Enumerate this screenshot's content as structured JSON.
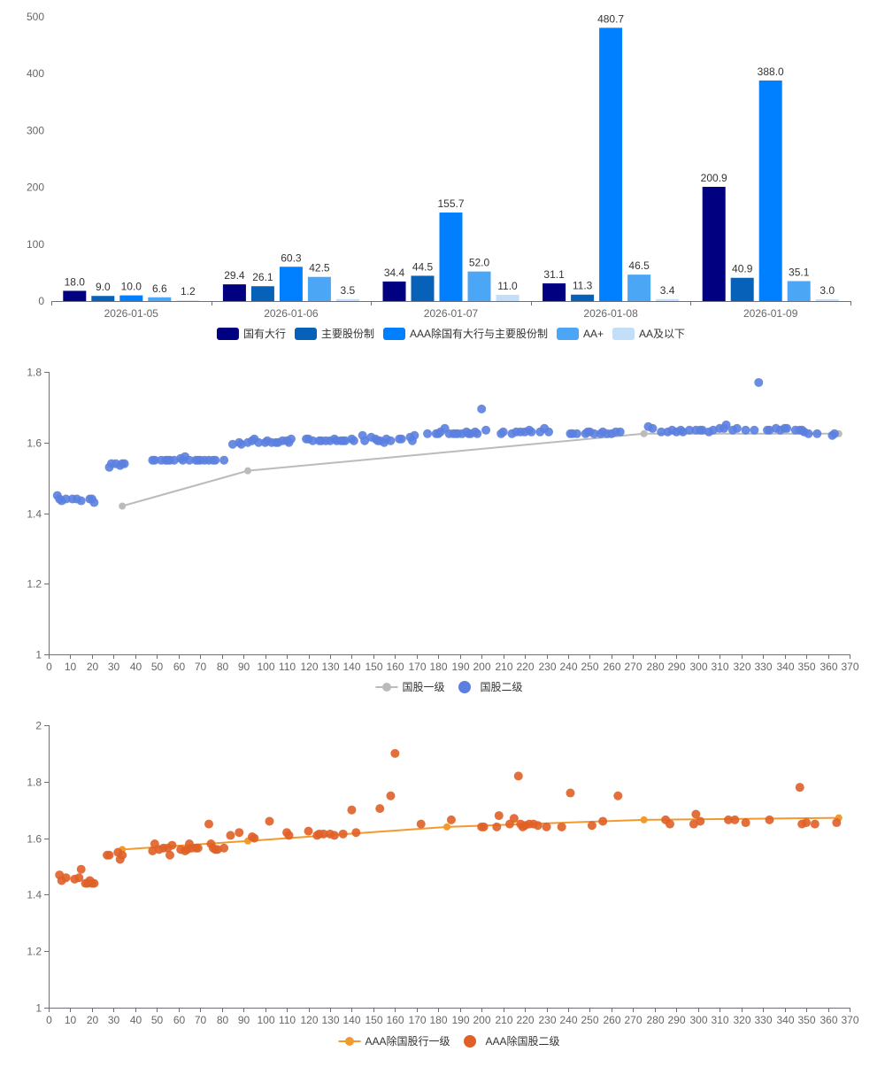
{
  "chart_data": [
    {
      "type": "bar",
      "categories": [
        "2026-01-05",
        "2026-01-06",
        "2026-01-07",
        "2026-01-08",
        "2026-01-09"
      ],
      "ylim": [
        0,
        500
      ],
      "yticks": [
        0,
        100,
        200,
        300,
        400,
        500
      ],
      "grid": false,
      "legend_position": "bottom",
      "series": [
        {
          "name": "国有大行",
          "color": "#000080",
          "values": [
            18.0,
            29.4,
            34.4,
            31.1,
            200.9
          ],
          "labels": [
            "18.0",
            "29.4",
            "34.4",
            "31.1",
            "200.9"
          ]
        },
        {
          "name": "主要股份制",
          "color": "#0761b8",
          "values": [
            9.0,
            26.1,
            44.5,
            11.3,
            40.9
          ],
          "labels": [
            "9.0",
            "26.1",
            "44.5",
            "11.3",
            "40.9"
          ]
        },
        {
          "name": "AAA除国有大行与主要股份制",
          "color": "#0080ff",
          "values": [
            10.0,
            60.3,
            155.7,
            480.7,
            388.0
          ],
          "labels": [
            "10.0",
            "60.3",
            "155.7",
            "480.7",
            "388.0"
          ]
        },
        {
          "name": "AA+",
          "color": "#4ba6f5",
          "values": [
            6.6,
            42.5,
            52.0,
            46.5,
            35.1
          ],
          "labels": [
            "6.6",
            "42.5",
            "52.0",
            "46.5",
            "35.1"
          ]
        },
        {
          "name": "AA及以下",
          "color": "#c2def8",
          "values": [
            1.2,
            3.5,
            11.0,
            3.4,
            3.0
          ],
          "labels": [
            "1.2",
            "3.5",
            "11.0",
            "3.4",
            "3.0"
          ]
        }
      ]
    },
    {
      "type": "scatter",
      "xlim": [
        0,
        370
      ],
      "ylim": [
        1,
        1.8
      ],
      "xticks": [
        0,
        10,
        20,
        30,
        40,
        50,
        60,
        70,
        80,
        90,
        100,
        110,
        120,
        130,
        140,
        150,
        160,
        170,
        180,
        190,
        200,
        210,
        220,
        230,
        240,
        250,
        260,
        270,
        280,
        290,
        300,
        310,
        320,
        330,
        340,
        350,
        360,
        370
      ],
      "yticks": [
        1,
        1.2,
        1.4,
        1.6,
        1.8
      ],
      "grid": false,
      "legend_position": "bottom",
      "series": [
        {
          "name": "国股一级",
          "kind": "line",
          "color": "#bbbbbb",
          "x": [
            34,
            92,
            275,
            365
          ],
          "y": [
            1.42,
            1.52,
            1.625,
            1.625
          ]
        },
        {
          "name": "国股二级",
          "kind": "scatter",
          "color": "#5b7fe0",
          "x": [
            4,
            5,
            6,
            8,
            11,
            13,
            15,
            19,
            20,
            21,
            28,
            29,
            31,
            33,
            34,
            35,
            48,
            49,
            52,
            54,
            55,
            56,
            58,
            61,
            62,
            63,
            65,
            68,
            69,
            70,
            72,
            74,
            76,
            77,
            81,
            85,
            88,
            89,
            92,
            94,
            95,
            97,
            100,
            101,
            103,
            105,
            106,
            108,
            110,
            111,
            112,
            119,
            120,
            122,
            125,
            126,
            128,
            130,
            132,
            133,
            135,
            136,
            137,
            140,
            141,
            145,
            146,
            149,
            151,
            152,
            153,
            155,
            156,
            158,
            162,
            163,
            167,
            168,
            169,
            175,
            179,
            180,
            181,
            183,
            185,
            187,
            188,
            189,
            191,
            193,
            194,
            195,
            197,
            198,
            200,
            202,
            209,
            210,
            214,
            216,
            218,
            220,
            222,
            223,
            227,
            229,
            231,
            241,
            242,
            244,
            248,
            249,
            250,
            252,
            255,
            256,
            258,
            260,
            262,
            264,
            277,
            279,
            283,
            286,
            288,
            290,
            292,
            293,
            296,
            299,
            301,
            302,
            305,
            307,
            310,
            312,
            313,
            316,
            318,
            322,
            326,
            328,
            332,
            333,
            336,
            338,
            340,
            341,
            345,
            347,
            348,
            349,
            351,
            355,
            362,
            363
          ],
          "y": [
            1.45,
            1.44,
            1.435,
            1.44,
            1.44,
            1.44,
            1.435,
            1.44,
            1.44,
            1.43,
            1.53,
            1.54,
            1.54,
            1.535,
            1.54,
            1.54,
            1.55,
            1.55,
            1.55,
            1.55,
            1.55,
            1.55,
            1.55,
            1.555,
            1.55,
            1.56,
            1.55,
            1.55,
            1.55,
            1.55,
            1.55,
            1.55,
            1.55,
            1.55,
            1.55,
            1.595,
            1.6,
            1.595,
            1.6,
            1.605,
            1.61,
            1.6,
            1.6,
            1.605,
            1.6,
            1.6,
            1.6,
            1.605,
            1.605,
            1.6,
            1.61,
            1.61,
            1.61,
            1.605,
            1.605,
            1.605,
            1.605,
            1.605,
            1.61,
            1.605,
            1.605,
            1.605,
            1.605,
            1.61,
            1.605,
            1.62,
            1.605,
            1.615,
            1.61,
            1.605,
            1.605,
            1.6,
            1.61,
            1.605,
            1.61,
            1.61,
            1.615,
            1.605,
            1.62,
            1.625,
            1.625,
            1.625,
            1.63,
            1.64,
            1.625,
            1.625,
            1.625,
            1.625,
            1.625,
            1.63,
            1.625,
            1.625,
            1.63,
            1.625,
            1.695,
            1.635,
            1.625,
            1.63,
            1.625,
            1.63,
            1.63,
            1.63,
            1.635,
            1.63,
            1.63,
            1.64,
            1.63,
            1.625,
            1.625,
            1.625,
            1.625,
            1.63,
            1.63,
            1.625,
            1.625,
            1.63,
            1.625,
            1.625,
            1.63,
            1.63,
            1.645,
            1.64,
            1.63,
            1.63,
            1.635,
            1.63,
            1.635,
            1.63,
            1.635,
            1.635,
            1.635,
            1.635,
            1.63,
            1.635,
            1.64,
            1.64,
            1.65,
            1.635,
            1.64,
            1.635,
            1.635,
            1.77,
            1.635,
            1.635,
            1.64,
            1.635,
            1.64,
            1.64,
            1.635,
            1.635,
            1.635,
            1.63,
            1.625,
            1.625,
            1.62,
            1.625
          ]
        }
      ]
    },
    {
      "type": "scatter",
      "xlim": [
        0,
        370
      ],
      "ylim": [
        1,
        2
      ],
      "xticks": [
        0,
        10,
        20,
        30,
        40,
        50,
        60,
        70,
        80,
        90,
        100,
        110,
        120,
        130,
        140,
        150,
        160,
        170,
        180,
        190,
        200,
        210,
        220,
        230,
        240,
        250,
        260,
        270,
        280,
        290,
        300,
        310,
        320,
        330,
        340,
        350,
        360,
        370
      ],
      "yticks": [
        1,
        1.2,
        1.4,
        1.6,
        1.8,
        2
      ],
      "grid": false,
      "legend_position": "bottom",
      "series": [
        {
          "name": "AAA除国股行一级",
          "kind": "line",
          "color": "#f29a2e",
          "x": [
            34,
            92,
            184,
            275,
            365
          ],
          "y": [
            1.56,
            1.59,
            1.64,
            1.665,
            1.672
          ]
        },
        {
          "name": "AAA除国股二级",
          "kind": "scatter",
          "color": "#e06027",
          "x": [
            5,
            6,
            8,
            12,
            14,
            15,
            17,
            18,
            19,
            20,
            21,
            27,
            28,
            32,
            33,
            34,
            48,
            49,
            51,
            53,
            55,
            56,
            57,
            61,
            63,
            64,
            65,
            66,
            68,
            69,
            74,
            75,
            76,
            77,
            78,
            81,
            84,
            88,
            94,
            95,
            102,
            110,
            111,
            120,
            124,
            125,
            127,
            130,
            132,
            136,
            140,
            142,
            153,
            158,
            160,
            172,
            186,
            200,
            201,
            207,
            208,
            213,
            215,
            217,
            218,
            219,
            220,
            222,
            224,
            226,
            230,
            237,
            241,
            251,
            256,
            263,
            285,
            287,
            298,
            299,
            301,
            314,
            317,
            322,
            333,
            347,
            348,
            350,
            354,
            364
          ],
          "y": [
            1.47,
            1.45,
            1.46,
            1.455,
            1.46,
            1.49,
            1.44,
            1.44,
            1.45,
            1.44,
            1.44,
            1.54,
            1.54,
            1.55,
            1.525,
            1.54,
            1.555,
            1.58,
            1.56,
            1.565,
            1.565,
            1.54,
            1.575,
            1.56,
            1.555,
            1.56,
            1.58,
            1.565,
            1.565,
            1.565,
            1.65,
            1.58,
            1.565,
            1.56,
            1.56,
            1.565,
            1.61,
            1.62,
            1.605,
            1.6,
            1.66,
            1.62,
            1.61,
            1.625,
            1.61,
            1.615,
            1.615,
            1.615,
            1.61,
            1.615,
            1.7,
            1.62,
            1.705,
            1.75,
            1.9,
            1.65,
            1.665,
            1.64,
            1.64,
            1.64,
            1.68,
            1.65,
            1.67,
            1.82,
            1.65,
            1.64,
            1.645,
            1.65,
            1.65,
            1.645,
            1.64,
            1.64,
            1.76,
            1.645,
            1.66,
            1.75,
            1.665,
            1.65,
            1.65,
            1.685,
            1.66,
            1.665,
            1.665,
            1.655,
            1.665,
            1.78,
            1.65,
            1.655,
            1.65,
            1.655
          ]
        }
      ]
    }
  ]
}
